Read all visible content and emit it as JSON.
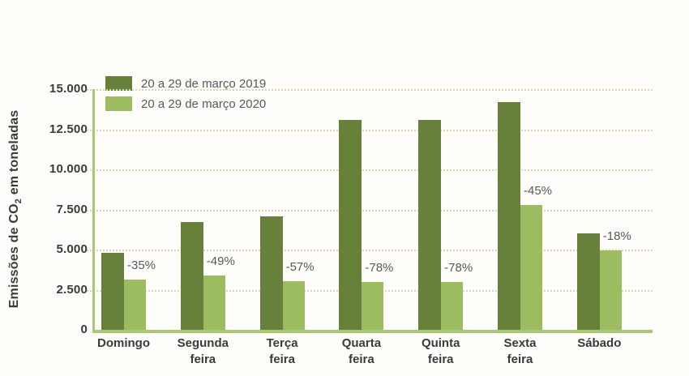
{
  "chart_data": {
    "type": "bar",
    "title": "",
    "ylabel_parts": {
      "pre": "Emissões de CO",
      "sub": "2",
      "post": " em toneladas"
    },
    "ylabel_plain": "Emissões de CO2 em toneladas",
    "categories": [
      {
        "line1": "Domingo",
        "line2": ""
      },
      {
        "line1": "Segunda",
        "line2": "feira"
      },
      {
        "line1": "Terça",
        "line2": "feira"
      },
      {
        "line1": "Quarta",
        "line2": "feira"
      },
      {
        "line1": "Quinta",
        "line2": "feira"
      },
      {
        "line1": "Sexta",
        "line2": "feira"
      },
      {
        "line1": "Sábado",
        "line2": ""
      }
    ],
    "series": [
      {
        "name": "20 a 29 de março 2019",
        "color": "#67813b",
        "values": [
          4800,
          6700,
          7050,
          13100,
          13100,
          14200,
          6000
        ]
      },
      {
        "name": "20 a 29 de março 2020",
        "color": "#9bbc5f",
        "values": [
          3150,
          3400,
          3050,
          3000,
          3000,
          7800,
          4950
        ]
      }
    ],
    "pct_labels": [
      "-35%",
      "-49%",
      "-57%",
      "-78%",
      "-78%",
      "-45%",
      "-18%"
    ],
    "ytick_values": [
      0,
      2500,
      5000,
      7500,
      10000,
      12500,
      15000
    ],
    "ytick_labels": [
      "0",
      "2.500",
      "5.000",
      "7.500",
      "10.000",
      "12.500",
      "15.000"
    ],
    "ylim": [
      0,
      15000
    ],
    "grid": "horizontal-dotted",
    "legend_position": "top-left",
    "colors": {
      "axis": "#a9c873",
      "gridline": "#d9d7b6",
      "tick_text": "#3a3a3c",
      "pct_text": "#57585a",
      "background": "#fffefb"
    }
  }
}
